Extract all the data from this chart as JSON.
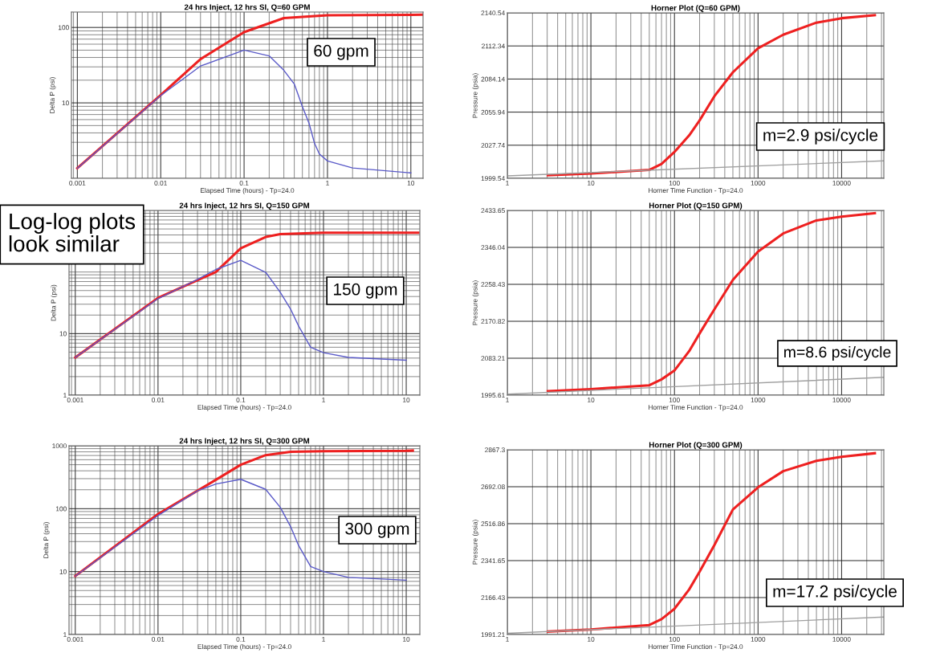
{
  "chart_data": [
    {
      "type": "line",
      "title": "24 hrs Inject, 12 hrs SI, Q=60 GPM",
      "xlabel": "Elapsed Time (hours) - Tp=24.0",
      "ylabel": "Delta P (psi)",
      "log": "xy",
      "grid": true,
      "xlim": [
        0.00085,
        14
      ],
      "ylim": [
        1,
        160
      ],
      "xticks": [
        0.001,
        0.01,
        0.1,
        1,
        10
      ],
      "yticks": [
        10,
        100
      ],
      "series": [
        {
          "color": "#ee2020",
          "x": [
            0.001,
            0.01,
            0.03,
            0.1,
            0.3,
            1,
            3,
            10,
            14
          ],
          "values": [
            1.36,
            12.7,
            38,
            86.6,
            133,
            145,
            146,
            147,
            148
          ]
        },
        {
          "color": "#5a5ac8",
          "x": [
            0.001,
            0.01,
            0.03,
            0.1,
            0.2,
            0.3,
            0.4,
            0.5,
            0.6,
            0.7,
            0.8,
            1,
            2,
            10
          ],
          "values": [
            1.36,
            12.5,
            30.8,
            50,
            42,
            27,
            17.8,
            8.9,
            5.4,
            2.9,
            2.1,
            1.7,
            1.37,
            1.18
          ]
        }
      ],
      "annotations": [
        "60 gpm"
      ]
    },
    {
      "type": "line",
      "title": "Horner Plot (Q=60 GPM)",
      "xlabel": "Horner Time Function - Tp=24.0",
      "ylabel": "Pressure (psia)",
      "log": "x",
      "grid": true,
      "xlim": [
        1,
        32000
      ],
      "ylim": [
        1999.54,
        2140.54
      ],
      "xticks": [
        1,
        10,
        100,
        1000,
        10000
      ],
      "yticks": [
        1999.54,
        2027.74,
        2055.94,
        2084.14,
        2112.34,
        2140.54
      ],
      "series": [
        {
          "color": "#ee2020",
          "x": [
            3.05,
            10,
            50,
            70,
            100,
            150,
            200,
            300,
            500,
            1000,
            2000,
            5000,
            10000,
            25000
          ],
          "values": [
            2002.1,
            2003.6,
            2006.7,
            2011.8,
            2022.0,
            2036.1,
            2048.9,
            2069.4,
            2089.9,
            2110.4,
            2121.9,
            2132.2,
            2136.0,
            2138.6
          ]
        },
        {
          "color": "#a0a0a0",
          "x": [
            1,
            32000
          ],
          "values": [
            2001.6,
            2014.4
          ]
        }
      ],
      "annotations": [
        "m=2.9 psi/cycle"
      ]
    },
    {
      "type": "line",
      "title": "24 hrs Inject, 12 hrs SI, Q=150 GPM",
      "xlabel": "Elapsed Time (hours) - Tp=24.0",
      "ylabel": "Delta P (psi)",
      "log": "xy",
      "grid": true,
      "xlim": [
        0.00084,
        14.6
      ],
      "ylim": [
        1,
        1000
      ],
      "xticks": [
        0.001,
        0.01,
        0.1,
        1,
        10
      ],
      "yticks": [
        1,
        10
      ],
      "series": [
        {
          "color": "#ee2020",
          "x": [
            0.001,
            0.01,
            0.05,
            0.1,
            0.2,
            0.3,
            1,
            10,
            14
          ],
          "values": [
            4.1,
            38,
            100,
            243,
            370,
            412,
            434,
            434,
            434
          ]
        },
        {
          "color": "#5a5ac8",
          "x": [
            0.001,
            0.01,
            0.03,
            0.05,
            0.1,
            0.2,
            0.3,
            0.4,
            0.5,
            0.7,
            1,
            2,
            10
          ],
          "values": [
            4.1,
            37,
            76,
            110,
            155,
            99,
            47,
            25,
            13.3,
            6.0,
            4.9,
            4.1,
            3.7
          ]
        }
      ],
      "annotations": [
        "150 gpm",
        "Log-log plots\nlook similar"
      ]
    },
    {
      "type": "line",
      "title": "Horner Plot (Q=150 GPM)",
      "xlabel": "Horner Time Function - Tp=24.0",
      "ylabel": "Pressure (psia)",
      "log": "x",
      "grid": true,
      "xlim": [
        1,
        32000
      ],
      "ylim": [
        1995.61,
        2433.65
      ],
      "xticks": [
        1,
        10,
        100,
        1000,
        10000
      ],
      "yticks": [
        1995.61,
        2083.21,
        2170.82,
        2258.43,
        2346.04,
        2433.65
      ],
      "series": [
        {
          "color": "#ee2020",
          "x": [
            3.05,
            10,
            50,
            70,
            100,
            150,
            200,
            300,
            500,
            1000,
            2000,
            5000,
            10000,
            25000
          ],
          "values": [
            2005,
            2010,
            2019,
            2033,
            2054,
            2100,
            2142,
            2199,
            2269,
            2336,
            2379,
            2410,
            2419,
            2427
          ]
        },
        {
          "color": "#a0a0a0",
          "x": [
            1,
            32000
          ],
          "values": [
            1998,
            2038
          ]
        }
      ],
      "annotations": [
        "m=8.6 psi/cycle"
      ]
    },
    {
      "type": "line",
      "title": "24 hrs Inject, 12 hrs SI, Q=300 GPM",
      "xlabel": "Elapsed Time (hours) - Tp=24.0",
      "ylabel": "Delta P (psi)",
      "log": "xy",
      "grid": true,
      "xlim": [
        0.00084,
        14.6
      ],
      "ylim": [
        1,
        1000
      ],
      "xticks": [
        0.001,
        0.01,
        0.1,
        1,
        10
      ],
      "yticks": [
        1,
        10,
        100,
        1000
      ],
      "series": [
        {
          "color": "#ee2020",
          "x": [
            0.001,
            0.01,
            0.05,
            0.1,
            0.2,
            0.4,
            1,
            10,
            12
          ],
          "values": [
            8.5,
            82,
            288,
            500,
            710,
            800,
            820,
            830,
            840
          ]
        },
        {
          "color": "#5a5ac8",
          "x": [
            0.001,
            0.01,
            0.03,
            0.05,
            0.1,
            0.2,
            0.3,
            0.4,
            0.5,
            0.7,
            1,
            2,
            10
          ],
          "values": [
            8.5,
            78,
            192,
            247,
            293,
            203,
            105,
            52,
            26,
            12,
            10,
            8.1,
            7.3
          ]
        }
      ],
      "annotations": [
        "300 gpm"
      ]
    },
    {
      "type": "line",
      "title": "Horner Plot (Q=300 GPM)",
      "xlabel": "Horner Time Function - Tp=24.0",
      "ylabel": "Pressure (psia)",
      "log": "x",
      "grid": true,
      "xlim": [
        1,
        32000
      ],
      "ylim": [
        1991.21,
        2867.3
      ],
      "xticks": [
        1,
        10,
        100,
        1000,
        10000
      ],
      "yticks": [
        1991.21,
        2166.43,
        2341.65,
        2516.86,
        2692.08,
        2867.3
      ],
      "series": [
        {
          "color": "#ee2020",
          "x": [
            3.05,
            10,
            50,
            70,
            100,
            150,
            200,
            300,
            500,
            1000,
            2000,
            5000,
            10000,
            25000
          ],
          "values": [
            2005,
            2015,
            2036,
            2064,
            2113,
            2205,
            2289,
            2415,
            2584,
            2689,
            2766,
            2815,
            2834,
            2851
          ]
        },
        {
          "color": "#a0a0a0",
          "x": [
            1,
            32000
          ],
          "values": [
            1997,
            2074
          ]
        }
      ],
      "annotations": [
        "m=17.2 psi/cycle"
      ]
    }
  ]
}
